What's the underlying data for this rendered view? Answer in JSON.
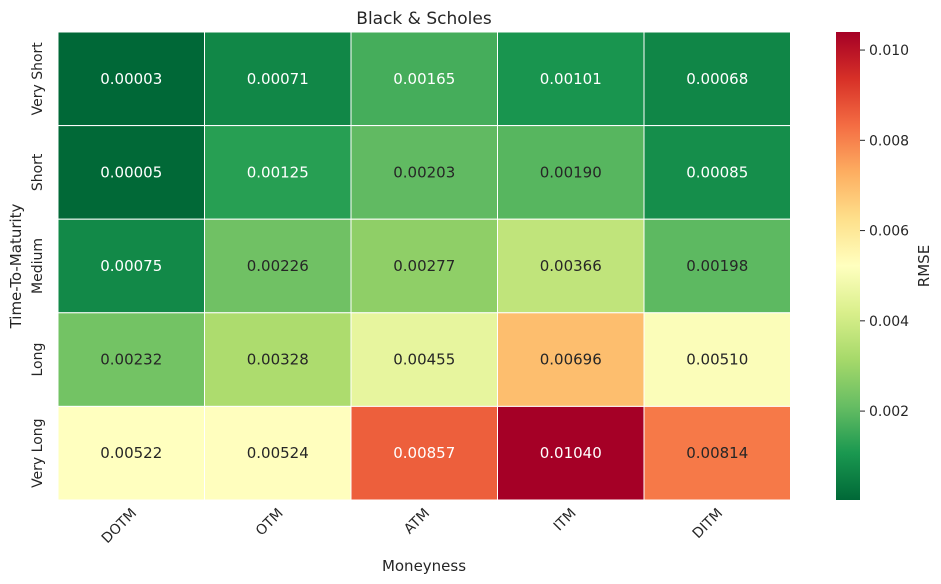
{
  "chart_data": {
    "type": "heatmap",
    "title": "Black & Scholes",
    "xlabel": "Moneyness",
    "ylabel": "Time-To-Maturity",
    "x_categories": [
      "DOTM",
      "OTM",
      "ATM",
      "ITM",
      "DITM"
    ],
    "y_categories": [
      "Very Short",
      "Short",
      "Medium",
      "Long",
      "Very Long"
    ],
    "values": [
      [
        3e-05,
        0.00071,
        0.00165,
        0.00101,
        0.00068
      ],
      [
        5e-05,
        0.00125,
        0.00203,
        0.0019,
        0.00085
      ],
      [
        0.00075,
        0.00226,
        0.00277,
        0.00366,
        0.00198
      ],
      [
        0.00232,
        0.00328,
        0.00455,
        0.00696,
        0.0051
      ],
      [
        0.00522,
        0.00524,
        0.00857,
        0.0104,
        0.00814
      ]
    ],
    "cell_labels": [
      [
        "0.00003",
        "0.00071",
        "0.00165",
        "0.00101",
        "0.00068"
      ],
      [
        "0.00005",
        "0.00125",
        "0.00203",
        "0.00190",
        "0.00085"
      ],
      [
        "0.00075",
        "0.00226",
        "0.00277",
        "0.00366",
        "0.00198"
      ],
      [
        "0.00232",
        "0.00328",
        "0.00455",
        "0.00696",
        "0.00510"
      ],
      [
        "0.00522",
        "0.00524",
        "0.00857",
        "0.01040",
        "0.00814"
      ]
    ],
    "colorbar": {
      "label": "RMSE",
      "range": [
        3e-05,
        0.0104
      ],
      "ticks": [
        0.002,
        0.004,
        0.006,
        0.008,
        0.01
      ],
      "tick_labels": [
        "0.002",
        "0.004",
        "0.006",
        "0.008",
        "0.010"
      ],
      "colormap": "RdYlGn_r",
      "colormap_stops": [
        "#006837",
        "#1a9850",
        "#66bd63",
        "#a6d96a",
        "#d9ef8b",
        "#ffffbf",
        "#fee08b",
        "#fdae61",
        "#f46d43",
        "#d73027",
        "#a50026"
      ]
    },
    "grid": false,
    "legend": "colorbar-right"
  }
}
